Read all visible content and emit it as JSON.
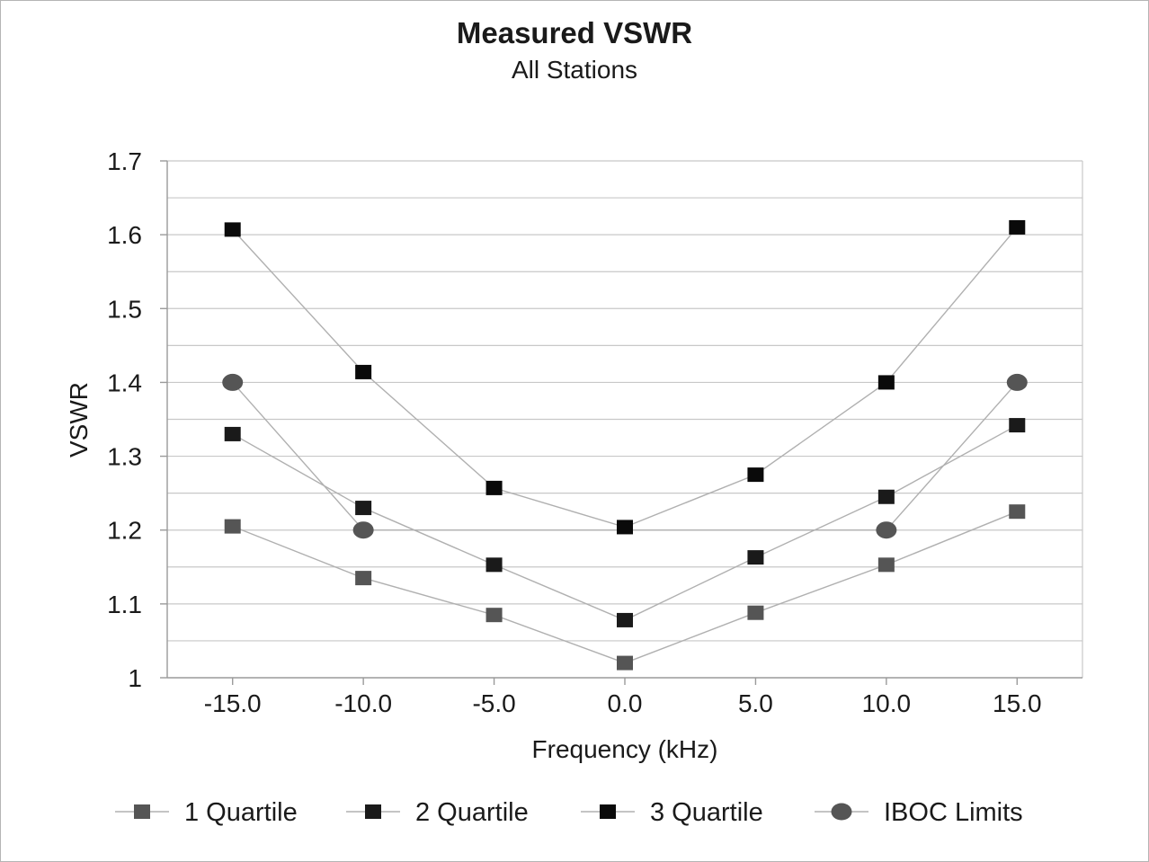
{
  "chart_data": {
    "type": "line",
    "title": "Measured VSWR",
    "subtitle": "All Stations",
    "xlabel": "Frequency (kHz)",
    "ylabel": "VSWR",
    "x": [
      -15.0,
      -10.0,
      -5.0,
      0.0,
      5.0,
      10.0,
      15.0
    ],
    "x_tick_labels": [
      "-15.0",
      "-10.0",
      "-5.0",
      "0.0",
      "5.0",
      "10.0",
      "15.0"
    ],
    "xlim": [
      -17.5,
      17.5
    ],
    "ylim": [
      1.0,
      1.7
    ],
    "y_ticks": [
      1.0,
      1.1,
      1.2,
      1.3,
      1.4,
      1.5,
      1.6,
      1.7
    ],
    "y_tick_labels": [
      "1",
      "1.1",
      "1.2",
      "1.3",
      "1.4",
      "1.5",
      "1.6",
      "1.7"
    ],
    "grid": true,
    "legend_position": "bottom",
    "series": [
      {
        "name": "1 Quartile",
        "marker": "square",
        "color": "#555555",
        "x": [
          -15.0,
          -10.0,
          -5.0,
          0.0,
          5.0,
          10.0,
          15.0
        ],
        "values": [
          1.205,
          1.135,
          1.085,
          1.02,
          1.088,
          1.153,
          1.225
        ]
      },
      {
        "name": "2 Quartile",
        "marker": "square",
        "color": "#1a1a1a",
        "x": [
          -15.0,
          -10.0,
          -5.0,
          0.0,
          5.0,
          10.0,
          15.0
        ],
        "values": [
          1.33,
          1.23,
          1.153,
          1.078,
          1.163,
          1.245,
          1.342
        ]
      },
      {
        "name": "3 Quartile",
        "marker": "square",
        "color": "#0a0a0a",
        "x": [
          -15.0,
          -10.0,
          -5.0,
          0.0,
          5.0,
          10.0,
          15.0
        ],
        "values": [
          1.607,
          1.414,
          1.257,
          1.204,
          1.275,
          1.4,
          1.61
        ]
      },
      {
        "name": "IBOC Limits",
        "marker": "circle",
        "color": "#555555",
        "x": [
          -15.0,
          -10.0,
          10.0,
          15.0
        ],
        "values": [
          1.4,
          1.2,
          1.2,
          1.4
        ]
      }
    ]
  }
}
